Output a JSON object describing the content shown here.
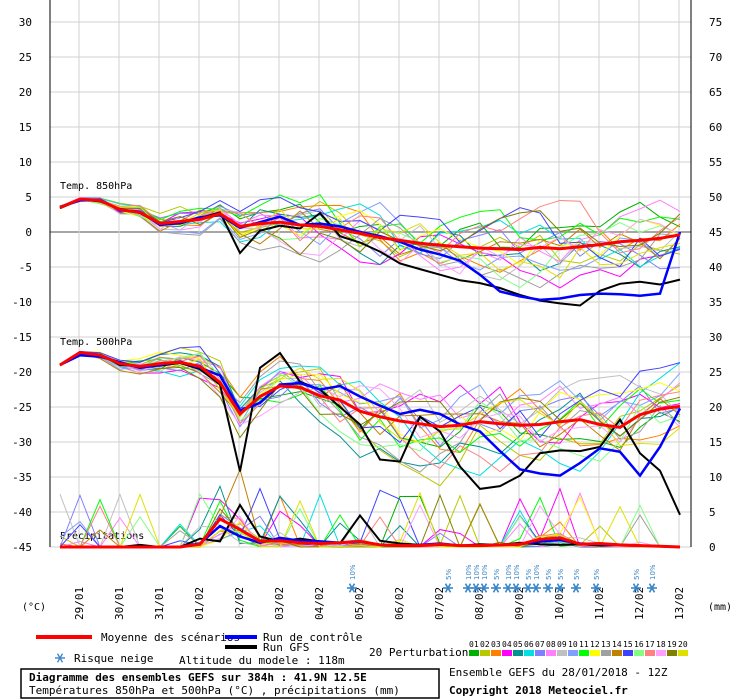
{
  "chart_data": {
    "type": "line",
    "title": "Diagramme des ensembles GEFS sur 384h : 41.9N 12.5E",
    "subtitle": "Températures 850hPa et 500hPa (°C) , précipitations (mm)",
    "left_axis": {
      "unit": "(°C)",
      "ticks": [
        30,
        25,
        20,
        15,
        10,
        5,
        0,
        -5,
        -10,
        -15,
        -20,
        -25,
        -30,
        -35,
        -40,
        -45
      ],
      "range": [
        -45,
        30
      ]
    },
    "right_axis": {
      "unit": "(mm)",
      "ticks": [
        75,
        70,
        65,
        60,
        55,
        50,
        45,
        40,
        35,
        30,
        25,
        20,
        15,
        10,
        5,
        0
      ],
      "range": [
        0,
        75
      ]
    },
    "x_ticks": [
      "29/01",
      "30/01",
      "31/01",
      "01/02",
      "02/02",
      "03/02",
      "04/02",
      "05/02",
      "06/02",
      "07/02",
      "08/02",
      "09/02",
      "10/02",
      "11/02",
      "12/02",
      "13/02"
    ],
    "panel_labels": {
      "t850": "Temp. 850hPa",
      "t500": "Temp. 500hPa",
      "precip": "Précipitations"
    },
    "x_days": [
      0,
      0.5,
      1,
      1.5,
      2,
      2.5,
      3,
      3.5,
      4,
      4.5,
      5,
      5.5,
      6,
      6.5,
      7,
      7.5,
      8,
      8.5,
      9,
      9.5,
      10,
      10.5,
      11,
      11.5,
      12,
      12.5,
      13,
      13.5,
      14,
      14.5,
      15,
      15.5
    ],
    "series": [
      {
        "name": "Moyenne des scénarios",
        "t850": [
          3.5,
          4.7,
          4.5,
          3.2,
          2.8,
          1.2,
          1.5,
          1.8,
          2.6,
          0.8,
          1.2,
          1.4,
          1.0,
          0.8,
          0.3,
          -0.2,
          -0.8,
          -1.2,
          -1.6,
          -1.9,
          -2.1,
          -2.3,
          -2.4,
          -2.5,
          -2.2,
          -2.4,
          -2.1,
          -1.8,
          -1.4,
          -1.2,
          -0.9,
          -0.4
        ],
        "t500": [
          -19,
          -17.2,
          -17.6,
          -18.8,
          -19.2,
          -18.8,
          -18.6,
          -19.2,
          -21.5,
          -26,
          -23.5,
          -22,
          -22.2,
          -23.4,
          -24,
          -25.6,
          -26.4,
          -27,
          -27.4,
          -27.8,
          -27.6,
          -27.1,
          -27.4,
          -27.6,
          -27.5,
          -27.1,
          -26.8,
          -27.5,
          -27.9,
          -26.1,
          -25.3,
          -24.9
        ],
        "precip": [
          0,
          0,
          0,
          0,
          0,
          0,
          0,
          0.4,
          4,
          2.5,
          0.8,
          0.9,
          0.6,
          0.5,
          0.6,
          0.8,
          0.3,
          0.2,
          0.2,
          0.4,
          0.2,
          0.2,
          0.3,
          0.4,
          1.1,
          1.3,
          0.4,
          0.5,
          0.3,
          0.2,
          0.1,
          0
        ]
      },
      {
        "name": "Run de contrôle",
        "t850": [
          3.6,
          4.5,
          4.6,
          3.1,
          2.9,
          1.0,
          1.3,
          2.1,
          2.4,
          0.6,
          1.4,
          2.2,
          1.0,
          1.2,
          0.8,
          0.0,
          -0.6,
          -1.4,
          -2.5,
          -3.2,
          -4.1,
          -6.1,
          -8.5,
          -9.2,
          -9.7,
          -9.5,
          -9.0,
          -8.8,
          -8.9,
          -9.1,
          -8.8,
          0.0
        ],
        "t500": [
          -19,
          -17.6,
          -17.8,
          -18.6,
          -19.4,
          -19,
          -18.5,
          -19.4,
          -20.5,
          -25.5,
          -24.4,
          -21.8,
          -21.6,
          -22.5,
          -22,
          -23.5,
          -24.8,
          -26,
          -25.4,
          -26,
          -27.5,
          -28.5,
          -31.3,
          -33.9,
          -34.5,
          -34.8,
          -33,
          -30.9,
          -31.4,
          -34.8,
          -30.7,
          -25.2
        ],
        "precip": [
          0,
          0,
          0,
          0,
          0,
          0,
          0,
          0.5,
          3,
          1.5,
          0.6,
          1.3,
          0.9,
          0.8,
          0.6,
          0.8,
          0.3,
          0.2,
          0.3,
          0.5,
          0.2,
          0.2,
          0.3,
          0.4,
          0.8,
          1.0,
          0.5,
          0.4,
          0.3,
          0.2,
          0.1,
          0
        ]
      },
      {
        "name": "Run GFS",
        "t850": [
          3.4,
          4.6,
          4.4,
          3.3,
          2.7,
          1.1,
          1.2,
          2.0,
          2.8,
          -3.0,
          0.2,
          0.9,
          0.5,
          2.7,
          -0.6,
          -1.5,
          -2.8,
          -4.5,
          -5.3,
          -6.1,
          -6.9,
          -7.3,
          -8.0,
          -9.0,
          -9.8,
          -10.2,
          -10.5,
          -8.4,
          -7.4,
          -7.1,
          -7.5,
          -6.8
        ],
        "t500": [
          -19,
          -17.4,
          -17.5,
          -19,
          -19.2,
          -19.1,
          -18.7,
          -19.6,
          -21.8,
          -34.2,
          -19.4,
          -17.3,
          -21.4,
          -22.5,
          -25,
          -27.5,
          -32.5,
          -32.8,
          -26.4,
          -28.5,
          -33.5,
          -36.7,
          -36.3,
          -34.8,
          -31.6,
          -31.2,
          -31.3,
          -30.7,
          -26.8,
          -31.6,
          -34.1,
          -40.4
        ],
        "precip": [
          0,
          0,
          0,
          0,
          0.3,
          0,
          0,
          1.2,
          0.8,
          6,
          1.5,
          0.8,
          1.2,
          0.8,
          0.5,
          4.5,
          0.9,
          0.5,
          0.3,
          0.3,
          0.2,
          0.4,
          0.3,
          0.6,
          0.4,
          0.3,
          0.4,
          0.2,
          0.3,
          0.2,
          0.1,
          0
        ]
      }
    ],
    "legend": {
      "mean": "Moyenne des scénarios",
      "control": "Run de contrôle",
      "gfs": "Run GFS",
      "snow": "Risque neige",
      "altitude": "Altitude du modele : 118m",
      "perturbations": "20 Perturbations"
    },
    "perturbation_codes": [
      "01",
      "02",
      "03",
      "04",
      "05",
      "06",
      "07",
      "08",
      "09",
      "10",
      "11",
      "12",
      "13",
      "14",
      "15",
      "16",
      "17",
      "18",
      "19",
      "20"
    ],
    "perturbation_colors": [
      "#00b000",
      "#b8c800",
      "#ff7f00",
      "#ff00ff",
      "#009090",
      "#00e0e0",
      "#8080ff",
      "#ff80ff",
      "#c0c0c0",
      "#80a0ff",
      "#00ff00",
      "#ffff00",
      "#a0a0a0",
      "#c08000",
      "#4040ff",
      "#80ff80",
      "#ff8080",
      "#ffa0ff",
      "#808000",
      "#e0e000"
    ],
    "snow_markers": [
      {
        "day": 7.3,
        "label": "10%"
      },
      {
        "day": 9.7,
        "label": "5%"
      },
      {
        "day": 10.2,
        "label": "10%"
      },
      {
        "day": 10.4,
        "label": "10%"
      },
      {
        "day": 10.6,
        "label": "10%"
      },
      {
        "day": 10.9,
        "label": "5%"
      },
      {
        "day": 11.2,
        "label": "10%"
      },
      {
        "day": 11.4,
        "label": "10%"
      },
      {
        "day": 11.7,
        "label": "5%"
      },
      {
        "day": 11.9,
        "label": "10%"
      },
      {
        "day": 12.2,
        "label": "5%"
      },
      {
        "day": 12.5,
        "label": "5%"
      },
      {
        "day": 12.9,
        "label": "5%"
      },
      {
        "day": 13.4,
        "label": "5%"
      },
      {
        "day": 14.4,
        "label": "5%"
      },
      {
        "day": 14.8,
        "label": "10%"
      }
    ],
    "run_info": "Ensemble GEFS du 28/01/2018 - 12Z",
    "copyright": "Copyright 2018 Meteociel.fr"
  }
}
